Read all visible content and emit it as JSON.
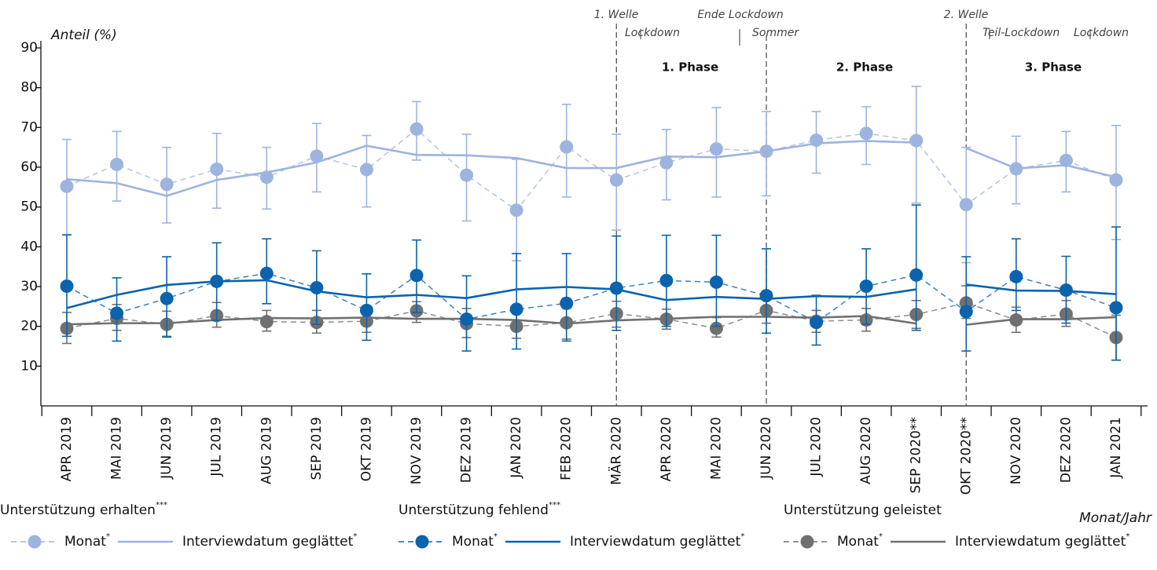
{
  "chart_data": {
    "type": "line",
    "y_label": "Anteil (%)",
    "x_label": "Monat/Jahr",
    "ylim": [
      0,
      90
    ],
    "yticks": [
      10,
      20,
      30,
      40,
      50,
      60,
      70,
      80,
      90
    ],
    "categories": [
      "APR 2019",
      "MAI 2019",
      "JUN 2019",
      "JUL 2019",
      "AUG 2019",
      "SEP 2019",
      "OKT 2019",
      "NOV 2019",
      "DEZ 2019",
      "JAN 2020",
      "FEB 2020",
      "MÄR 2020",
      "APR 2020",
      "MAI 2020",
      "JUN 2020",
      "JUL 2020",
      "AUG 2020",
      "SEP 2020**",
      "OKT 2020**",
      "NOV 2020",
      "DEZ 2020",
      "JAN 2021"
    ],
    "events": [
      "1. Welle",
      "Lockdown",
      "Ende Lockdown",
      "Sommer",
      "2. Welle",
      "Teil-Lockdown",
      "Lockdown"
    ],
    "phases": [
      "1. Phase",
      "2. Phase",
      "3. Phase"
    ],
    "groups": [
      {
        "name": "Unterstützung erhalten",
        "name_sup": "***",
        "color": "#9db4df",
        "monthly": {
          "name": "Monat",
          "name_sup": "*",
          "values": [
            55.2,
            60.7,
            55.7,
            59.5,
            57.5,
            62.8,
            59.4,
            69.6,
            58.0,
            49.2,
            65.1,
            56.8,
            61.1,
            64.6,
            64.0,
            66.8,
            68.5,
            66.7,
            50.6,
            59.6,
            61.7,
            56.8
          ],
          "ci_low": [
            43,
            51.5,
            46,
            49.7,
            49.5,
            53.8,
            50,
            61.8,
            46.5,
            36.5,
            52.5,
            44.2,
            51.8,
            52.5,
            52.8,
            58.5,
            60.7,
            51,
            36,
            50.8,
            53.8,
            41.8
          ],
          "ci_high": [
            67,
            69,
            65,
            68.5,
            65,
            71,
            68,
            76.5,
            68.3,
            62,
            75.8,
            68.3,
            69.5,
            75,
            74,
            74,
            75.2,
            80.3,
            65,
            67.8,
            69,
            70.5
          ]
        },
        "smoothed": {
          "name": "Interviewdatum geglättet",
          "name_sup": "*",
          "pieces": [
            [
              57,
              56,
              52.8,
              56.8,
              58.7,
              61.2,
              65.4,
              63.1,
              63,
              62.3,
              59.8,
              59.8,
              62.7,
              62.5,
              64,
              66,
              66.6,
              66.2
            ],
            [
              64.8,
              59.7,
              60.5,
              57.5
            ]
          ]
        }
      },
      {
        "name": "Unterstützung fehlend",
        "name_sup": "***",
        "color": "#0b63ad",
        "monthly": {
          "name": "Monat",
          "name_sup": "*",
          "values": [
            30.1,
            23.3,
            27,
            31.3,
            33.3,
            29.7,
            24,
            32.8,
            21.8,
            24.3,
            25.8,
            29.6,
            31.5,
            31.1,
            27.7,
            21,
            30.1,
            32.9,
            23.7,
            32.5,
            29.1,
            24.7
          ],
          "ci_low": [
            17.5,
            16.3,
            17.3,
            21.5,
            25.7,
            20.5,
            16.5,
            23.5,
            13.8,
            14.3,
            16.3,
            19,
            20,
            20,
            18.3,
            15.3,
            20.5,
            19,
            13.8,
            24,
            20.8,
            11.5
          ],
          "ci_high": [
            43,
            32.2,
            37.5,
            41,
            42,
            39,
            33.2,
            41.7,
            32.7,
            38.3,
            38.3,
            42.7,
            42.9,
            42.9,
            39.5,
            27.8,
            39.5,
            50.5,
            37.5,
            42,
            37.6,
            45
          ]
        },
        "smoothed": {
          "name": "Interviewdatum geglättet",
          "name_sup": "*",
          "pieces": [
            [
              24.6,
              27.9,
              30.4,
              31.3,
              31.6,
              28.8,
              27.3,
              27.9,
              27.1,
              29.3,
              29.9,
              29.3,
              26.6,
              27.4,
              26.9,
              27.6,
              27.4,
              29.3
            ],
            [
              30.5,
              29,
              28.9,
              28.1
            ]
          ]
        }
      },
      {
        "name": "Unterstützung geleistet",
        "color": "#707070",
        "monthly": {
          "name": "Monat",
          "name_sup": "*",
          "values": [
            19.5,
            22,
            20.5,
            22.7,
            21.2,
            21,
            21.3,
            23.9,
            20.7,
            20,
            20.9,
            23.2,
            21.8,
            19.5,
            24,
            21.3,
            21.6,
            23,
            25.9,
            21.6,
            23.1,
            17.2
          ],
          "ci_low": [
            15.7,
            19,
            17.5,
            19.8,
            18.8,
            18.3,
            18.5,
            21,
            17.2,
            17,
            16.8,
            19.8,
            19.3,
            17.3,
            20.8,
            18.5,
            18.8,
            19.5,
            22,
            18.5,
            20,
            11.5
          ],
          "ci_high": [
            23.5,
            25.5,
            23.8,
            26,
            24,
            24,
            24.2,
            26.2,
            24.5,
            23.8,
            24.5,
            26.3,
            24.3,
            22.2,
            27,
            24,
            24.5,
            26.5,
            30.2,
            24.8,
            26.5,
            22.8
          ]
        },
        "smoothed": {
          "name": "Interviewdatum geglättet",
          "name_sup": "*",
          "pieces": [
            [
              20.5,
              20.8,
              20.8,
              21.6,
              22.1,
              22,
              22.2,
              21.9,
              21.9,
              21.6,
              20.7,
              21.5,
              21.9,
              22.4,
              22.4,
              22.2,
              22.6,
              20.7
            ],
            [
              20.4,
              21.8,
              21.8,
              22.3
            ]
          ]
        }
      }
    ]
  }
}
